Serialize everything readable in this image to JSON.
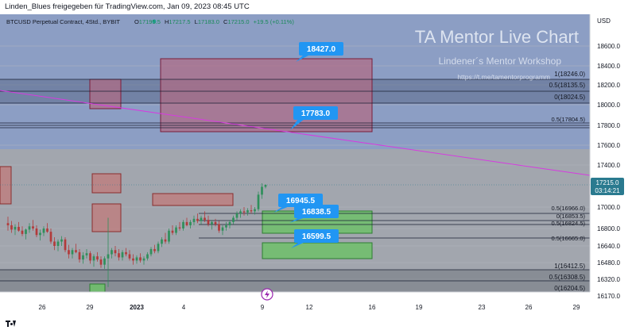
{
  "header": {
    "share_text": "Linden_Blues freigegeben für TradingView.com, Jan 09, 2023 08:45 UTC"
  },
  "chart_data": {
    "type": "candlestick",
    "symbol_line": {
      "name": "BTCUSD Perpetual Contract, 4Std., BYBIT",
      "open_label": "O",
      "open": "17195.5",
      "high_label": "H",
      "high": "17217.5",
      "low_label": "L",
      "low": "17183.0",
      "close_label": "C",
      "close": "17215.0",
      "change": "+19.5 (+0.11%)"
    },
    "watermark": {
      "title": "TA Mentor Live Chart",
      "subtitle": "Lindener´s Mentor Workshop",
      "link": "https://t.me/tamentorprogramm"
    },
    "currency": "USD",
    "ylim": [
      16170,
      18800
    ],
    "y_ticks": [
      18600,
      18400,
      18200,
      18000,
      17800,
      17600,
      17400,
      17000,
      16800,
      16640,
      16480,
      16320,
      16170
    ],
    "y_tick_labels": [
      "18600.0",
      "18400.0",
      "18200.0",
      "18000.0",
      "17800.0",
      "17600.0",
      "17400.0",
      "17000.0",
      "16800.0",
      "16640.0",
      "16480.0",
      "16320.0",
      "16170.0"
    ],
    "x_ticks": [
      "26",
      "29",
      "2023",
      "4",
      "9",
      "12",
      "16",
      "19",
      "23",
      "26",
      "29"
    ],
    "last_price": {
      "value": "17215.0",
      "countdown": "03:14:21"
    },
    "annotations": [
      {
        "text": "18427.0",
        "value": 18427.0
      },
      {
        "text": "17783.0",
        "value": 17783.0
      },
      {
        "text": "16945.5",
        "value": 16945.5
      },
      {
        "text": "16838.5",
        "value": 16838.5
      },
      {
        "text": "16599.5",
        "value": 16599.5
      }
    ],
    "fib_labels_upper": [
      "1(18246.0)",
      "0.5(18135.5)",
      "0(18024.5)"
    ],
    "fib_labels_lower": [
      "1(16412.5)",
      "0.5(16308.5)",
      "0(16204.5)"
    ],
    "fib_labels_mid": [
      "0.5(16966.0)",
      "0(16853.5)",
      "0.5(16824.5)",
      "0.5(16665.0)",
      "0.5(17804.5)"
    ],
    "candles": [
      [
        16850,
        16910,
        16780,
        16830
      ],
      [
        16830,
        16870,
        16760,
        16790
      ],
      [
        16790,
        16840,
        16740,
        16815
      ],
      [
        16815,
        16860,
        16770,
        16780
      ],
      [
        16780,
        16820,
        16730,
        16750
      ],
      [
        16750,
        16800,
        16700,
        16790
      ],
      [
        16790,
        16850,
        16760,
        16820
      ],
      [
        16820,
        16880,
        16780,
        16800
      ],
      [
        16800,
        16830,
        16720,
        16740
      ],
      [
        16740,
        16790,
        16690,
        16760
      ],
      [
        16760,
        16820,
        16730,
        16800
      ],
      [
        16800,
        16850,
        16760,
        16770
      ],
      [
        16770,
        16800,
        16660,
        16680
      ],
      [
        16680,
        16720,
        16600,
        16640
      ],
      [
        16640,
        16700,
        16590,
        16680
      ],
      [
        16680,
        16730,
        16640,
        16700
      ],
      [
        16700,
        16720,
        16580,
        16600
      ],
      [
        16600,
        16650,
        16520,
        16560
      ],
      [
        16560,
        16620,
        16520,
        16600
      ],
      [
        16600,
        16660,
        16570,
        16580
      ],
      [
        16580,
        16610,
        16480,
        16510
      ],
      [
        16510,
        16580,
        16470,
        16550
      ],
      [
        16550,
        16610,
        16520,
        16570
      ],
      [
        16570,
        16590,
        16470,
        16500
      ],
      [
        16500,
        16560,
        16440,
        16540
      ],
      [
        16540,
        16580,
        16490,
        16510
      ],
      [
        16510,
        16540,
        16430,
        16460
      ],
      [
        16460,
        16540,
        16420,
        16520
      ],
      [
        16520,
        16900,
        16250,
        16560
      ],
      [
        16560,
        16620,
        16520,
        16600
      ],
      [
        16600,
        16640,
        16540,
        16570
      ],
      [
        16570,
        16610,
        16500,
        16530
      ],
      [
        16530,
        16600,
        16500,
        16580
      ],
      [
        16580,
        16620,
        16540,
        16560
      ],
      [
        16560,
        16600,
        16500,
        16520
      ],
      [
        16520,
        16560,
        16460,
        16500
      ],
      [
        16500,
        16550,
        16470,
        16530
      ],
      [
        16530,
        16570,
        16480,
        16500
      ],
      [
        16500,
        16540,
        16460,
        16520
      ],
      [
        16520,
        16580,
        16500,
        16560
      ],
      [
        16560,
        16630,
        16540,
        16610
      ],
      [
        16610,
        16650,
        16570,
        16590
      ],
      [
        16590,
        16680,
        16570,
        16660
      ],
      [
        16660,
        16720,
        16630,
        16700
      ],
      [
        16700,
        16760,
        16660,
        16680
      ],
      [
        16680,
        16800,
        16660,
        16780
      ],
      [
        16780,
        16830,
        16740,
        16760
      ],
      [
        16760,
        16830,
        16740,
        16810
      ],
      [
        16810,
        16860,
        16780,
        16800
      ],
      [
        16800,
        16880,
        16780,
        16860
      ],
      [
        16860,
        16900,
        16820,
        16830
      ],
      [
        16830,
        16880,
        16800,
        16860
      ],
      [
        16860,
        16920,
        16830,
        16890
      ],
      [
        16890,
        16940,
        16850,
        16870
      ],
      [
        16870,
        16920,
        16840,
        16900
      ],
      [
        16900,
        16960,
        16860,
        16880
      ],
      [
        16880,
        16920,
        16820,
        16840
      ],
      [
        16840,
        16880,
        16790,
        16860
      ],
      [
        16860,
        16890,
        16820,
        16840
      ],
      [
        16840,
        16870,
        16760,
        16780
      ],
      [
        16780,
        16830,
        16740,
        16810
      ],
      [
        16810,
        16860,
        16780,
        16830
      ],
      [
        16830,
        16880,
        16800,
        16860
      ],
      [
        16860,
        16920,
        16840,
        16900
      ],
      [
        16900,
        16960,
        16880,
        16940
      ],
      [
        16940,
        16980,
        16900,
        16960
      ],
      [
        16960,
        17000,
        16920,
        16950
      ],
      [
        16950,
        16990,
        16920,
        16970
      ],
      [
        16970,
        17020,
        16940,
        16960
      ],
      [
        16960,
        17000,
        16930,
        16980
      ],
      [
        16980,
        17150,
        16960,
        17120
      ],
      [
        17120,
        17230,
        17080,
        17196
      ],
      [
        17196,
        17220,
        17180,
        17215
      ]
    ]
  }
}
